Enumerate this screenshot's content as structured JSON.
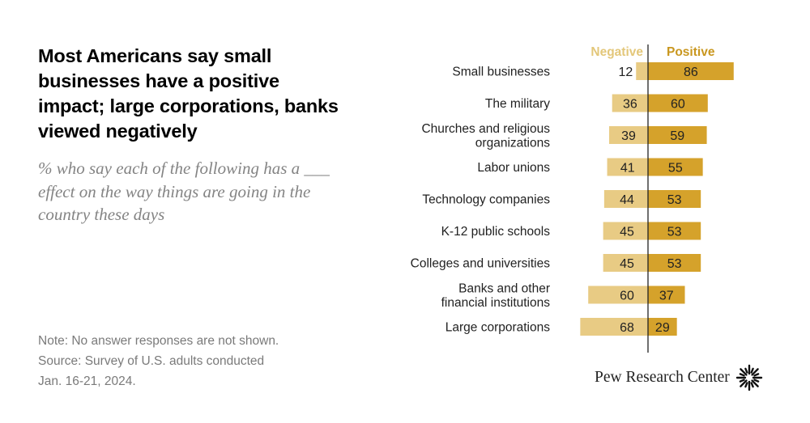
{
  "title": "Most Americans say small businesses have a positive impact; large corporations, banks viewed negatively",
  "subtitle": "% who say each of the following has a ___ effect on the way things are going in the country these days",
  "note_lines": [
    "Note: No answer responses are not shown.",
    "Source: Survey of U.S. adults conducted",
    "Jan. 16-21, 2024."
  ],
  "logo": {
    "text": "Pew Research Center",
    "icon": "sunburst-icon"
  },
  "colors": {
    "negative": "#E8CB84",
    "positive": "#D5A22B",
    "negative_header": "#E3C77A",
    "positive_header": "#C9971F",
    "axis": "#222222",
    "label": "#222222"
  },
  "chart_data": {
    "type": "bar",
    "orientation": "horizontal-diverging",
    "title": "Most Americans say small businesses have a positive impact; large corporations, banks viewed negatively",
    "series": [
      {
        "name": "Negative",
        "values": [
          12,
          36,
          39,
          41,
          44,
          45,
          45,
          60,
          68
        ]
      },
      {
        "name": "Positive",
        "values": [
          86,
          60,
          59,
          55,
          53,
          53,
          53,
          37,
          29
        ]
      }
    ],
    "categories": [
      [
        "Small businesses"
      ],
      [
        "The military"
      ],
      [
        "Churches and religious",
        "organizations"
      ],
      [
        "Labor unions"
      ],
      [
        "Technology companies"
      ],
      [
        "K-12 public schools"
      ],
      [
        "Colleges and universities"
      ],
      [
        "Banks and other",
        "financial institutions"
      ],
      [
        "Large corporations"
      ]
    ],
    "unit": "%",
    "xlabel": "",
    "ylabel": ""
  }
}
